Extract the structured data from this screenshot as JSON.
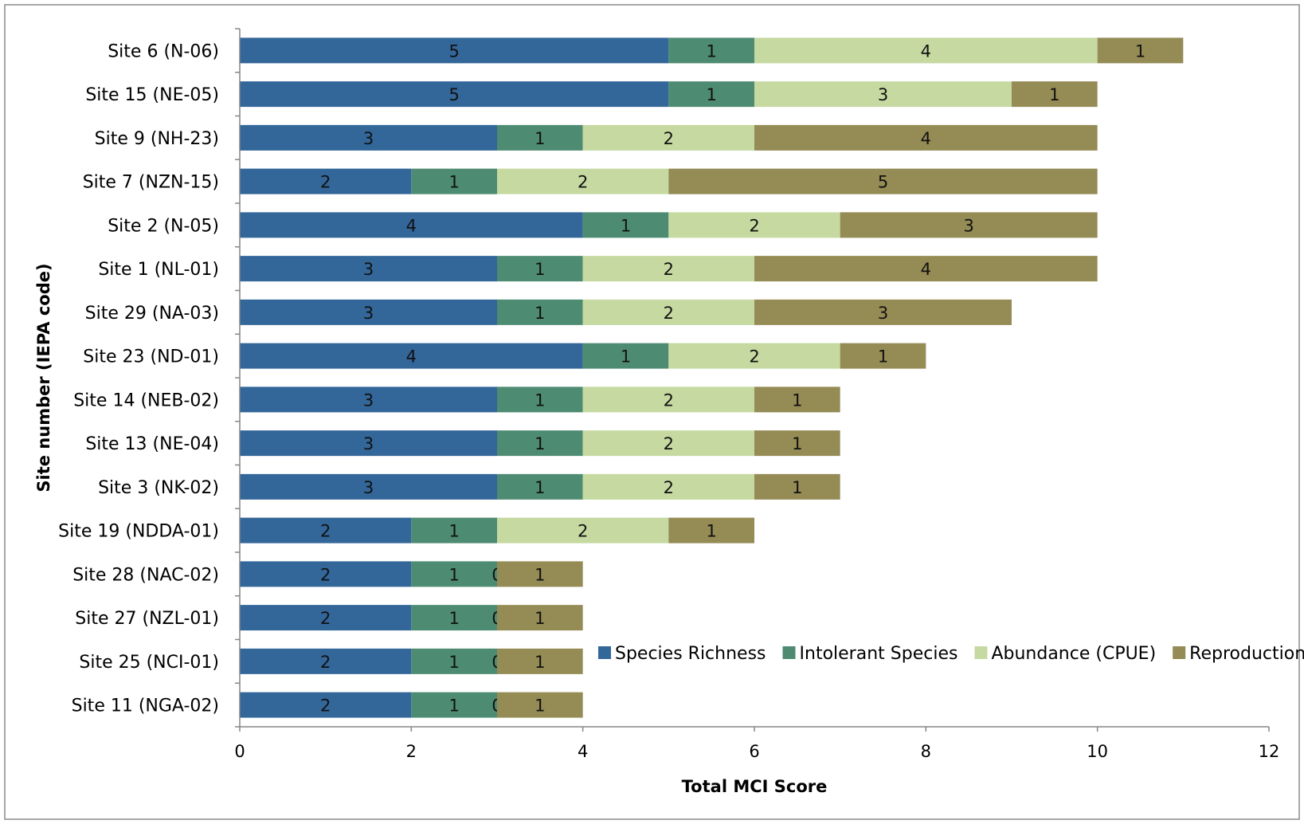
{
  "chart_data": {
    "type": "bar",
    "orientation": "horizontal",
    "stacked": true,
    "title": "",
    "xlabel": "Total MCI Score",
    "ylabel": "Site number (IEPA code)",
    "xlim": [
      0,
      12
    ],
    "xticks": [
      0,
      2,
      4,
      6,
      8,
      10,
      12
    ],
    "grid": false,
    "legend_position": "bottom-right",
    "categories": [
      "Site 6 (N-06)",
      "Site 15 (NE-05)",
      "Site 9 (NH-23)",
      "Site 7 (NZN-15)",
      "Site 2 (N-05)",
      "Site 1 (NL-01)",
      "Site 29 (NA-03)",
      "Site 23 (ND-01)",
      "Site 14 (NEB-02)",
      "Site 13 (NE-04)",
      "Site 3 (NK-02)",
      "Site 19 (NDDA-01)",
      "Site 28 (NAC-02)",
      "Site 27 (NZL-01)",
      "Site 25 (NCI-01)",
      "Site 11 (NGA-02)"
    ],
    "series": [
      {
        "name": "Species Richness",
        "color": "#336699",
        "values": [
          5,
          5,
          3,
          2,
          4,
          3,
          3,
          4,
          3,
          3,
          3,
          2,
          2,
          2,
          2,
          2
        ]
      },
      {
        "name": "Intolerant Species",
        "color": "#4E8B73",
        "values": [
          1,
          1,
          1,
          1,
          1,
          1,
          1,
          1,
          1,
          1,
          1,
          1,
          1,
          1,
          1,
          1
        ]
      },
      {
        "name": "Abundance (CPUE)",
        "color": "#C5D9A0",
        "values": [
          4,
          3,
          2,
          2,
          2,
          2,
          2,
          2,
          2,
          2,
          2,
          2,
          0,
          0,
          0,
          0
        ]
      },
      {
        "name": "Reproduction",
        "color": "#948B55",
        "values": [
          1,
          1,
          4,
          5,
          3,
          4,
          3,
          1,
          1,
          1,
          1,
          1,
          1,
          1,
          1,
          1
        ]
      }
    ]
  }
}
